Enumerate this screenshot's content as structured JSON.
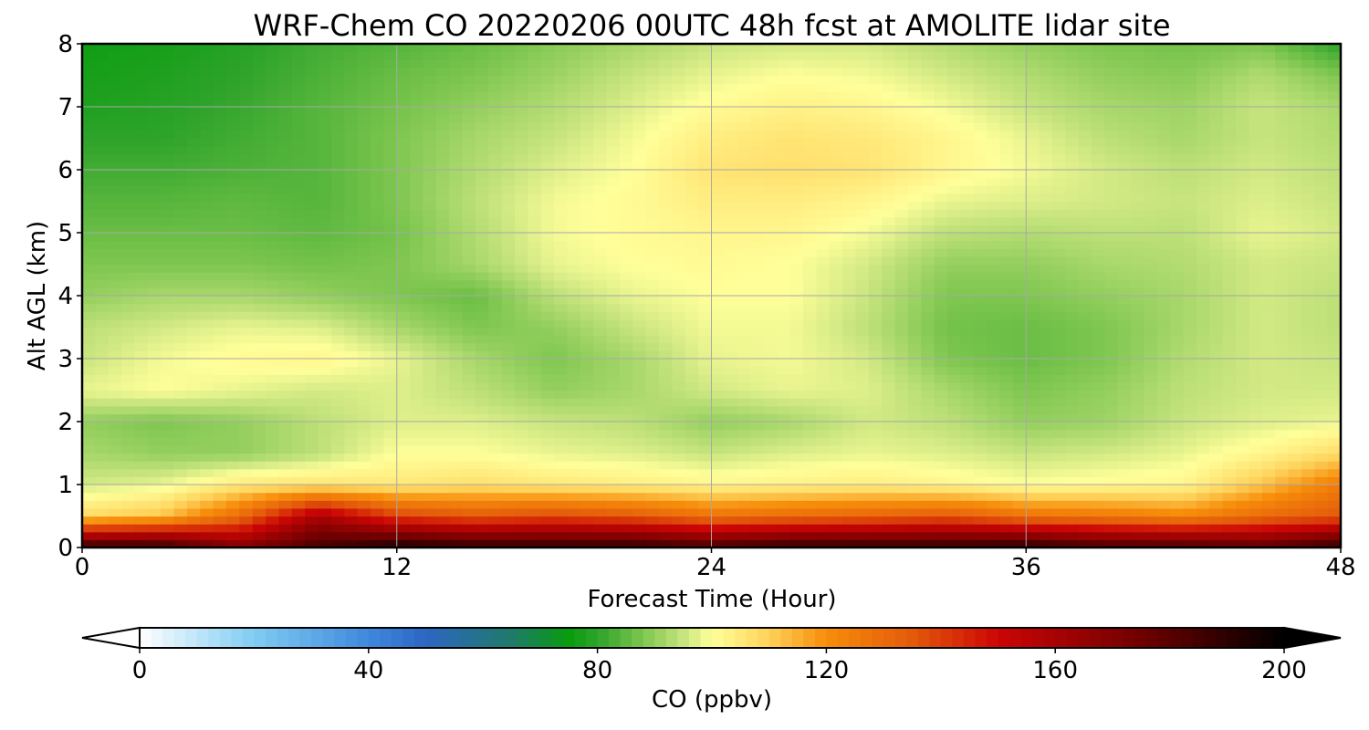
{
  "chart_data": {
    "type": "heatmap",
    "title": "WRF-Chem CO  20220206 00UTC 48h fcst at AMOLITE lidar site",
    "xlabel": "Forecast Time (Hour)",
    "ylabel": "Alt AGL (km)",
    "xlim": [
      0,
      48
    ],
    "ylim": [
      0,
      8
    ],
    "x_ticks": [
      0,
      12,
      24,
      36,
      48
    ],
    "x_tick_labels": [
      "0",
      "12",
      "24",
      "36",
      "48"
    ],
    "y_ticks": [
      0,
      1,
      2,
      3,
      4,
      5,
      6,
      7,
      8
    ],
    "y_tick_labels": [
      "0",
      "1",
      "2",
      "3",
      "4",
      "5",
      "6",
      "7",
      "8"
    ],
    "grid": true,
    "x_hours": [
      0,
      3,
      6,
      9,
      12,
      15,
      18,
      21,
      24,
      27,
      30,
      33,
      36,
      39,
      42,
      45,
      48
    ],
    "y_km": [
      0,
      0.5,
      1,
      1.5,
      2,
      2.5,
      3,
      3.5,
      4,
      4.5,
      5,
      5.5,
      6,
      6.5,
      7,
      7.5,
      8
    ],
    "z_ppbv": [
      [
        190,
        190,
        170,
        185,
        195,
        190,
        190,
        190,
        185,
        190,
        190,
        190,
        192,
        185,
        185,
        180,
        190
      ],
      [
        108,
        112,
        130,
        160,
        140,
        135,
        138,
        135,
        128,
        130,
        132,
        135,
        128,
        126,
        122,
        130,
        135
      ],
      [
        96,
        98,
        105,
        106,
        105,
        107,
        105,
        104,
        102,
        103,
        104,
        102,
        100,
        101,
        102,
        112,
        125
      ],
      [
        92,
        90,
        90,
        94,
        100,
        100,
        98,
        97,
        95,
        97,
        98,
        97,
        95,
        96,
        98,
        102,
        108
      ],
      [
        90,
        88,
        90,
        94,
        97,
        97,
        95,
        94,
        90,
        92,
        96,
        94,
        90,
        91,
        95,
        97,
        98
      ],
      [
        98,
        100,
        98,
        96,
        97,
        94,
        90,
        92,
        96,
        98,
        97,
        92,
        88,
        90,
        94,
        96,
        96
      ],
      [
        95,
        99,
        101,
        102,
        98,
        92,
        88,
        92,
        98,
        99,
        96,
        88,
        86,
        88,
        93,
        96,
        95
      ],
      [
        94,
        96,
        98,
        97,
        92,
        88,
        90,
        95,
        99,
        99,
        94,
        87,
        86,
        88,
        92,
        96,
        94
      ],
      [
        90,
        92,
        92,
        90,
        88,
        86,
        94,
        98,
        100,
        100,
        95,
        88,
        88,
        90,
        92,
        96,
        94
      ],
      [
        88,
        88,
        88,
        87,
        88,
        92,
        98,
        100,
        101,
        100,
        96,
        90,
        90,
        92,
        93,
        96,
        95
      ],
      [
        86,
        86,
        86,
        85,
        87,
        93,
        99,
        101,
        102,
        102,
        99,
        94,
        93,
        94,
        94,
        98,
        96
      ],
      [
        84,
        84,
        85,
        84,
        88,
        94,
        99,
        101,
        104,
        104,
        102,
        98,
        97,
        96,
        95,
        97,
        95
      ],
      [
        82,
        82,
        83,
        84,
        88,
        93,
        97,
        100,
        106,
        107,
        106,
        102,
        99,
        96,
        94,
        96,
        94
      ],
      [
        80,
        80,
        82,
        84,
        88,
        92,
        95,
        99,
        104,
        106,
        105,
        102,
        98,
        94,
        92,
        95,
        93
      ],
      [
        78,
        79,
        81,
        84,
        87,
        90,
        93,
        97,
        101,
        103,
        102,
        99,
        95,
        92,
        91,
        95,
        92
      ],
      [
        77,
        78,
        80,
        83,
        86,
        88,
        91,
        95,
        98,
        100,
        99,
        96,
        93,
        90,
        89,
        93,
        88
      ],
      [
        76,
        77,
        79,
        82,
        84,
        86,
        89,
        92,
        95,
        96,
        96,
        93,
        90,
        88,
        87,
        88,
        80
      ]
    ],
    "colorbar": {
      "label": "CO  (ppbv)",
      "range": [
        0,
        200
      ],
      "extend": "both",
      "ticks": [
        0,
        40,
        80,
        120,
        160,
        200
      ],
      "tick_labels": [
        "0",
        "40",
        "80",
        "120",
        "160",
        "200"
      ],
      "color_stops": [
        {
          "value": 0,
          "color": "#ffffff"
        },
        {
          "value": 20,
          "color": "#80ccf2"
        },
        {
          "value": 40,
          "color": "#3f88dc"
        },
        {
          "value": 50,
          "color": "#2d66c4"
        },
        {
          "value": 65,
          "color": "#1f7a6a"
        },
        {
          "value": 75,
          "color": "#089c0e"
        },
        {
          "value": 80,
          "color": "#2ea32a"
        },
        {
          "value": 87,
          "color": "#74c24a"
        },
        {
          "value": 95,
          "color": "#c7e47e"
        },
        {
          "value": 100,
          "color": "#ffff9a"
        },
        {
          "value": 110,
          "color": "#ffd25a"
        },
        {
          "value": 120,
          "color": "#f78d0a"
        },
        {
          "value": 135,
          "color": "#e35a0b"
        },
        {
          "value": 150,
          "color": "#cc0505"
        },
        {
          "value": 175,
          "color": "#700000"
        },
        {
          "value": 200,
          "color": "#000000"
        }
      ]
    }
  }
}
